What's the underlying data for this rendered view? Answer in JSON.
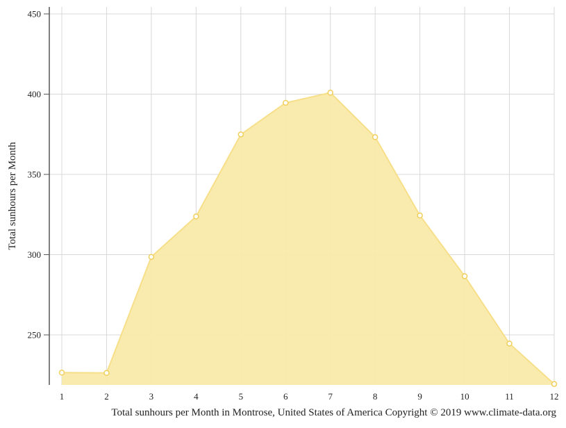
{
  "chart_data": {
    "type": "area",
    "title": "",
    "xlabel": "Total sunhours per Month in Montrose, United States of America Copyright © 2019 www.climate-data.org",
    "ylabel": "Total sunhours per Month",
    "x": [
      1,
      2,
      3,
      4,
      5,
      6,
      7,
      8,
      9,
      10,
      11,
      12
    ],
    "x_tick_labels": [
      "1",
      "2",
      "3",
      "4",
      "5",
      "6",
      "7",
      "8",
      "9",
      "10",
      "11",
      "12"
    ],
    "values": [
      226.5,
      226.3,
      298.6,
      323.8,
      374.9,
      394.6,
      400.9,
      373.2,
      324.4,
      286.6,
      244.6,
      219.4
    ],
    "y_ticks": [
      250,
      300,
      350,
      400,
      450
    ],
    "y_tick_labels": [
      "250",
      "300",
      "350",
      "400",
      "450"
    ],
    "xlim": [
      1,
      12
    ],
    "ylim": [
      219.4,
      450
    ],
    "grid": true,
    "colors": {
      "fill": "#f9eaaa",
      "line": "#f7df8a",
      "marker_fill": "#ffffff",
      "marker_stroke": "#f0cf5c",
      "grid": "#d8d8d8",
      "axis": "#555555"
    }
  }
}
